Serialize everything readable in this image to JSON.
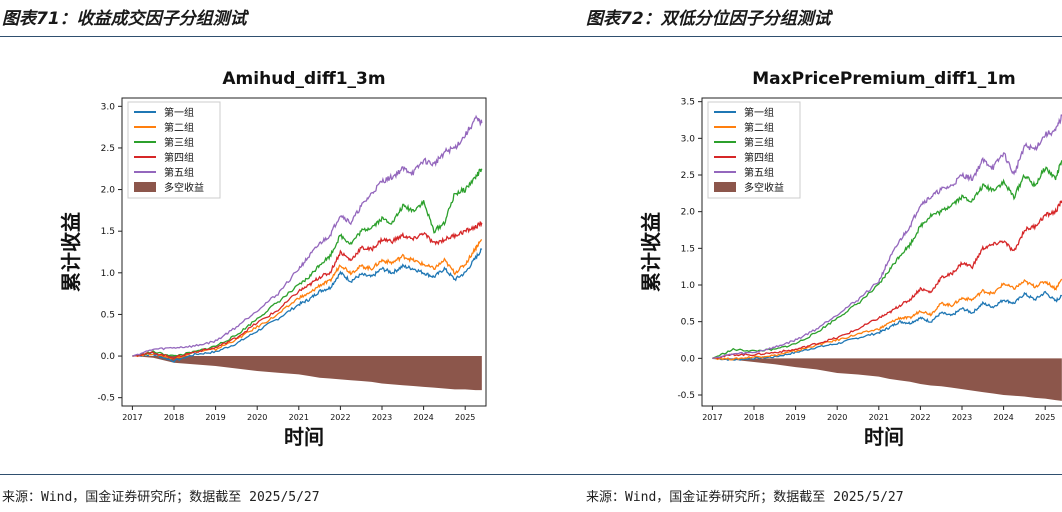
{
  "panels": [
    {
      "title": "图表71：收益成交因子分组测试",
      "source": "来源：Wind，国金证券研究所；数据截至 2025/5/27"
    },
    {
      "title": "图表72：双低分位因子分组测试",
      "source": "来源：Wind，国金证券研究所；数据截至 2025/5/27"
    }
  ],
  "colors": {
    "group1": "#1f77b4",
    "group2": "#ff7f0e",
    "group3": "#2ca02c",
    "group4": "#d62728",
    "group5": "#9467bd",
    "longshort": "#8c564b",
    "rule": "#2f4f6f"
  },
  "chart_data": [
    {
      "type": "line",
      "title": "Amihud_diff1_3m",
      "xlabel": "时间",
      "ylabel": "累计收益",
      "x_ticks": [
        "2017",
        "2018",
        "2019",
        "2020",
        "2021",
        "2022",
        "2023",
        "2024",
        "2025"
      ],
      "y_ticks": [
        "0.0",
        "0.5",
        "1.0",
        "1.5",
        "2.0",
        "2.5",
        "3.0"
      ],
      "y_ticks_neg": [
        "-0.5"
      ],
      "ylim": [
        -0.6,
        3.1
      ],
      "xlim": [
        2016.75,
        2025.5
      ],
      "legend_position": "upper-left",
      "dates": [
        2017.0,
        2017.5,
        2018.0,
        2018.5,
        2019.0,
        2019.5,
        2020.0,
        2020.5,
        2021.0,
        2021.25,
        2021.5,
        2021.75,
        2022.0,
        2022.25,
        2022.5,
        2022.75,
        2023.0,
        2023.25,
        2023.5,
        2023.75,
        2024.0,
        2024.25,
        2024.5,
        2024.75,
        2025.0,
        2025.25,
        2025.4
      ],
      "series": [
        {
          "name": "第一组",
          "color_key": "group1",
          "values": [
            0.0,
            0.02,
            -0.06,
            0.02,
            0.05,
            0.15,
            0.3,
            0.45,
            0.62,
            0.68,
            0.78,
            0.82,
            1.0,
            0.9,
            0.98,
            0.95,
            1.05,
            1.0,
            1.08,
            1.05,
            1.0,
            0.95,
            1.05,
            0.92,
            1.0,
            1.18,
            1.28
          ]
        },
        {
          "name": "第二组",
          "color_key": "group2",
          "values": [
            0.0,
            0.03,
            -0.03,
            0.05,
            0.08,
            0.2,
            0.35,
            0.5,
            0.7,
            0.75,
            0.85,
            0.9,
            1.1,
            1.0,
            1.08,
            1.05,
            1.15,
            1.12,
            1.2,
            1.15,
            1.1,
            1.05,
            1.15,
            1.0,
            1.1,
            1.3,
            1.4
          ]
        },
        {
          "name": "第三组",
          "color_key": "group3",
          "values": [
            0.0,
            0.05,
            0.0,
            0.05,
            0.12,
            0.25,
            0.45,
            0.65,
            0.85,
            0.95,
            1.1,
            1.2,
            1.45,
            1.35,
            1.5,
            1.55,
            1.65,
            1.6,
            1.8,
            1.75,
            1.85,
            1.5,
            1.6,
            1.95,
            2.0,
            2.15,
            2.25
          ]
        },
        {
          "name": "第四组",
          "color_key": "group4",
          "values": [
            0.0,
            0.04,
            -0.02,
            0.05,
            0.1,
            0.22,
            0.4,
            0.55,
            0.78,
            0.85,
            0.95,
            1.0,
            1.25,
            1.15,
            1.3,
            1.28,
            1.4,
            1.38,
            1.45,
            1.4,
            1.48,
            1.35,
            1.4,
            1.45,
            1.5,
            1.55,
            1.6
          ]
        },
        {
          "name": "第五组",
          "color_key": "group5",
          "values": [
            0.0,
            0.08,
            0.1,
            0.12,
            0.18,
            0.35,
            0.55,
            0.75,
            1.05,
            1.2,
            1.35,
            1.45,
            1.7,
            1.6,
            1.8,
            1.95,
            2.1,
            2.15,
            2.25,
            2.2,
            2.35,
            2.3,
            2.45,
            2.5,
            2.65,
            2.85,
            2.8
          ]
        }
      ],
      "bar_series": {
        "name": "多空收益",
        "color_key": "longshort",
        "values": [
          0.0,
          -0.02,
          -0.08,
          -0.1,
          -0.12,
          -0.15,
          -0.18,
          -0.2,
          -0.22,
          -0.24,
          -0.26,
          -0.27,
          -0.28,
          -0.29,
          -0.3,
          -0.31,
          -0.33,
          -0.34,
          -0.35,
          -0.36,
          -0.37,
          -0.38,
          -0.39,
          -0.4,
          -0.4,
          -0.41,
          -0.41
        ]
      }
    },
    {
      "type": "line",
      "title": "MaxPricePremium_diff1_1m",
      "xlabel": "时间",
      "ylabel": "累计收益",
      "x_ticks": [
        "2017",
        "2018",
        "2019",
        "2020",
        "2021",
        "2022",
        "2023",
        "2024",
        "2025"
      ],
      "y_ticks": [
        "0.0",
        "0.5",
        "1.0",
        "1.5",
        "2.0",
        "2.5",
        "3.0",
        "3.5"
      ],
      "y_ticks_neg": [
        "-0.5"
      ],
      "ylim": [
        -0.65,
        3.55
      ],
      "xlim": [
        2016.75,
        2025.5
      ],
      "legend_position": "upper-left",
      "dates": [
        2017.0,
        2017.5,
        2018.0,
        2018.5,
        2019.0,
        2019.5,
        2020.0,
        2020.5,
        2021.0,
        2021.25,
        2021.5,
        2021.75,
        2022.0,
        2022.25,
        2022.5,
        2022.75,
        2023.0,
        2023.25,
        2023.5,
        2023.75,
        2024.0,
        2024.25,
        2024.5,
        2024.75,
        2025.0,
        2025.25,
        2025.4
      ],
      "series": [
        {
          "name": "第一组",
          "color_key": "group1",
          "values": [
            0.0,
            -0.02,
            0.0,
            0.02,
            0.08,
            0.15,
            0.2,
            0.28,
            0.35,
            0.42,
            0.5,
            0.48,
            0.55,
            0.5,
            0.62,
            0.58,
            0.68,
            0.62,
            0.75,
            0.7,
            0.8,
            0.75,
            0.88,
            0.8,
            0.9,
            0.78,
            0.85
          ]
        },
        {
          "name": "第二组",
          "color_key": "group2",
          "values": [
            0.0,
            -0.01,
            0.02,
            0.04,
            0.1,
            0.18,
            0.25,
            0.33,
            0.4,
            0.48,
            0.55,
            0.55,
            0.65,
            0.6,
            0.75,
            0.72,
            0.82,
            0.8,
            0.92,
            0.88,
            1.02,
            0.95,
            1.05,
            0.98,
            1.05,
            0.95,
            1.08
          ]
        },
        {
          "name": "第三组",
          "color_key": "group3",
          "values": [
            0.0,
            0.12,
            0.1,
            0.12,
            0.2,
            0.35,
            0.55,
            0.75,
            1.0,
            1.2,
            1.4,
            1.55,
            1.8,
            1.95,
            2.0,
            2.1,
            2.2,
            2.15,
            2.35,
            2.3,
            2.4,
            2.2,
            2.5,
            2.35,
            2.6,
            2.45,
            2.7
          ]
        },
        {
          "name": "第四组",
          "color_key": "group4",
          "values": [
            0.0,
            0.05,
            0.05,
            0.08,
            0.12,
            0.2,
            0.28,
            0.4,
            0.55,
            0.62,
            0.72,
            0.8,
            0.95,
            0.9,
            1.1,
            1.15,
            1.3,
            1.25,
            1.5,
            1.55,
            1.6,
            1.45,
            1.75,
            1.8,
            1.95,
            2.0,
            2.15
          ]
        },
        {
          "name": "第五组",
          "color_key": "group5",
          "values": [
            0.0,
            0.06,
            0.08,
            0.15,
            0.25,
            0.4,
            0.6,
            0.8,
            1.05,
            1.35,
            1.6,
            1.8,
            2.1,
            2.2,
            2.3,
            2.35,
            2.5,
            2.45,
            2.7,
            2.6,
            2.8,
            2.5,
            2.9,
            2.85,
            3.05,
            3.1,
            3.3
          ]
        }
      ],
      "bar_series": {
        "name": "多空收益",
        "color_key": "longshort",
        "values": [
          0.0,
          -0.02,
          -0.05,
          -0.08,
          -0.12,
          -0.15,
          -0.2,
          -0.22,
          -0.25,
          -0.28,
          -0.3,
          -0.32,
          -0.35,
          -0.37,
          -0.38,
          -0.4,
          -0.42,
          -0.44,
          -0.46,
          -0.48,
          -0.5,
          -0.51,
          -0.52,
          -0.54,
          -0.55,
          -0.57,
          -0.58
        ]
      }
    }
  ]
}
